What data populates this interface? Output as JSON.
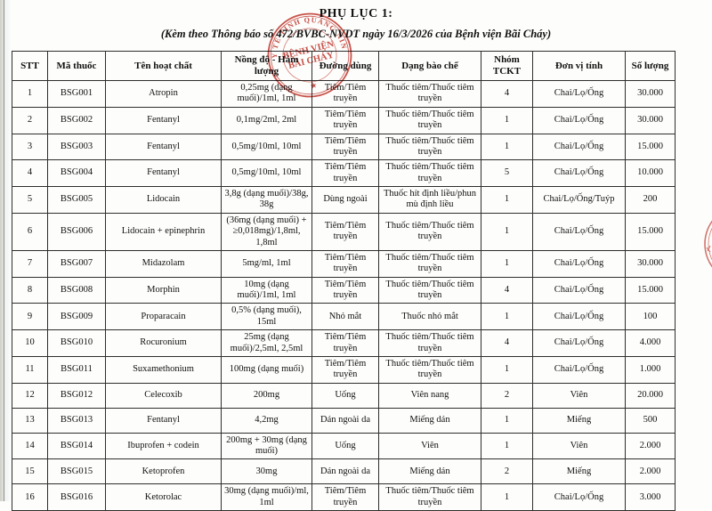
{
  "page": {
    "title": "PHỤ LỤC 1:",
    "subtitle": "(Kèm theo Thông báo số 472/BVBC-NVDT ngày 16/3/2026 của Bệnh viện Bãi Cháy)"
  },
  "stamp": {
    "ring_text": "SỞ Y TẾ TỈNH QUẢNG NINH",
    "center_line1": "BỆNH VIỆN",
    "center_line2": "BÃI CHÁY",
    "star": "★",
    "color": "#c23a32"
  },
  "table": {
    "column_keys": [
      "stt",
      "ma-thuoc",
      "ten-hoat-chat",
      "nong-do-ham-luong",
      "duong-dung",
      "dang-bao-che",
      "nhom-tckt",
      "don-vi-tinh",
      "so-luong"
    ],
    "headers": [
      "STT",
      "Mã thuốc",
      "Tên hoạt chất",
      "Nồng độ - Hàm lượng",
      "Đường dùng",
      "Dạng bào chế",
      "Nhóm TCKT",
      "Đơn vị tính",
      "Số lượng"
    ],
    "rows": [
      [
        "1",
        "BSG001",
        "Atropin",
        "0,25mg (dạng muối)/1ml, 1ml",
        "Tiêm/Tiêm truyền",
        "Thuốc tiêm/Thuốc tiêm truyền",
        "4",
        "Chai/Lọ/Ống",
        "30.000"
      ],
      [
        "2",
        "BSG002",
        "Fentanyl",
        "0,1mg/2ml, 2ml",
        "Tiêm/Tiêm truyền",
        "Thuốc tiêm/Thuốc tiêm truyền",
        "1",
        "Chai/Lọ/Ống",
        "30.000"
      ],
      [
        "3",
        "BSG003",
        "Fentanyl",
        "0,5mg/10ml, 10ml",
        "Tiêm/Tiêm truyền",
        "Thuốc tiêm/Thuốc tiêm truyền",
        "1",
        "Chai/Lọ/Ống",
        "15.000"
      ],
      [
        "4",
        "BSG004",
        "Fentanyl",
        "0,5mg/10ml, 10ml",
        "Tiêm/Tiêm truyền",
        "Thuốc tiêm/Thuốc tiêm truyền",
        "5",
        "Chai/Lọ/Ống",
        "10.000"
      ],
      [
        "5",
        "BSG005",
        "Lidocain",
        "3,8g (dạng muối)/38g, 38g",
        "Dùng ngoài",
        "Thuốc hít định liều/phun mù định liều",
        "1",
        "Chai/Lọ/Ống/Tuýp",
        "200"
      ],
      [
        "6",
        "BSG006",
        "Lidocain + epinephrin",
        "(36mg (dạng muối) + ≥0,018mg)/1,8ml, 1,8ml",
        "Tiêm/Tiêm truyền",
        "Thuốc tiêm/Thuốc tiêm truyền",
        "1",
        "Chai/Lọ/Ống",
        "15.000"
      ],
      [
        "7",
        "BSG007",
        "Midazolam",
        "5mg/ml, 1ml",
        "Tiêm/Tiêm truyền",
        "Thuốc tiêm/Thuốc tiêm truyền",
        "1",
        "Chai/Lọ/Ống",
        "30.000"
      ],
      [
        "8",
        "BSG008",
        "Morphin",
        "10mg (dạng muối)/1ml, 1ml",
        "Tiêm/Tiêm truyền",
        "Thuốc tiêm/Thuốc tiêm truyền",
        "4",
        "Chai/Lọ/Ống",
        "15.000"
      ],
      [
        "9",
        "BSG009",
        "Proparacain",
        "0,5% (dạng muối), 15ml",
        "Nhỏ mắt",
        "Thuốc nhỏ mắt",
        "1",
        "Chai/Lọ/Ống",
        "100"
      ],
      [
        "10",
        "BSG010",
        "Rocuronium",
        "25mg (dạng muối)/2,5ml, 2,5ml",
        "Tiêm/Tiêm truyền",
        "Thuốc tiêm/Thuốc tiêm truyền",
        "4",
        "Chai/Lọ/Ống",
        "4.000"
      ],
      [
        "11",
        "BSG011",
        "Suxamethonium",
        "100mg (dạng muối)",
        "Tiêm/Tiêm truyền",
        "Thuốc tiêm/Thuốc tiêm truyền",
        "1",
        "Chai/Lọ/Ống",
        "1.000"
      ],
      [
        "12",
        "BSG012",
        "Celecoxib",
        "200mg",
        "Uống",
        "Viên nang",
        "2",
        "Viên",
        "20.000"
      ],
      [
        "13",
        "BSG013",
        "Fentanyl",
        "4,2mg",
        "Dán ngoài da",
        "Miếng dán",
        "1",
        "Miếng",
        "500"
      ],
      [
        "14",
        "BSG014",
        "Ibuprofen + codein",
        "200mg + 30mg (dạng muối)",
        "Uống",
        "Viên",
        "1",
        "Viên",
        "2.000"
      ],
      [
        "15",
        "BSG015",
        "Ketoprofen",
        "30mg",
        "Dán ngoài da",
        "Miếng dán",
        "2",
        "Miếng",
        "2.000"
      ],
      [
        "16",
        "BSG016",
        "Ketorolac",
        "30mg (dạng muối)/ml, 1ml",
        "Tiêm/Tiêm truyền",
        "Thuốc tiêm/Thuốc tiêm truyền",
        "1",
        "Chai/Lọ/Ống",
        "3.000"
      ]
    ]
  }
}
